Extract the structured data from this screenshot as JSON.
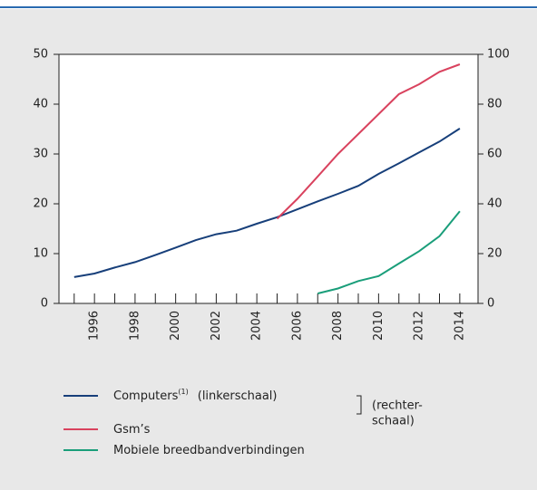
{
  "chart_data": {
    "type": "line",
    "x": [
      1995,
      1996,
      1997,
      1998,
      1999,
      2000,
      2001,
      2002,
      2003,
      2004,
      2005,
      2006,
      2007,
      2008,
      2009,
      2010,
      2011,
      2012,
      2013,
      2014
    ],
    "series": [
      {
        "name": "Computers",
        "superscript": "(1)",
        "note": "(linkerschaal)",
        "color": "#173f7a",
        "axis": "y",
        "values": [
          5.3,
          6.0,
          7.2,
          8.3,
          9.7,
          11.2,
          12.7,
          13.9,
          14.6,
          16.0,
          17.3,
          18.9,
          20.5,
          22.0,
          23.6,
          26.0,
          28.1,
          30.3,
          32.5,
          35.1
        ]
      },
      {
        "name": "Gsm’s",
        "color": "#d9425e",
        "axis": "y2",
        "values": [
          null,
          null,
          null,
          null,
          null,
          null,
          null,
          null,
          null,
          null,
          34,
          42,
          51,
          60,
          68,
          76,
          84,
          88,
          93,
          96
        ]
      },
      {
        "name": "Mobiele breedbandverbindingen",
        "color": "#1a9e7a",
        "axis": "y2",
        "values": [
          null,
          null,
          null,
          null,
          null,
          null,
          null,
          null,
          null,
          null,
          null,
          null,
          4,
          6,
          9,
          11,
          16,
          21,
          27,
          37
        ]
      }
    ],
    "right_note": [
      "(rechter-",
      "schaal)"
    ],
    "xlim": [
      1994.25,
      2014.9
    ],
    "xticks": [
      1996,
      1998,
      2000,
      2002,
      2004,
      2006,
      2008,
      2010,
      2012,
      2014
    ],
    "xminor_ticks": [
      1995,
      1997,
      1999,
      2001,
      2003,
      2005,
      2007,
      2009,
      2011,
      2013
    ],
    "ylim": [
      0,
      50
    ],
    "yticks": [
      0,
      10,
      20,
      30,
      40,
      50
    ],
    "y2lim": [
      0,
      100
    ],
    "y2ticks": [
      0,
      20,
      40,
      60,
      80,
      100
    ]
  }
}
